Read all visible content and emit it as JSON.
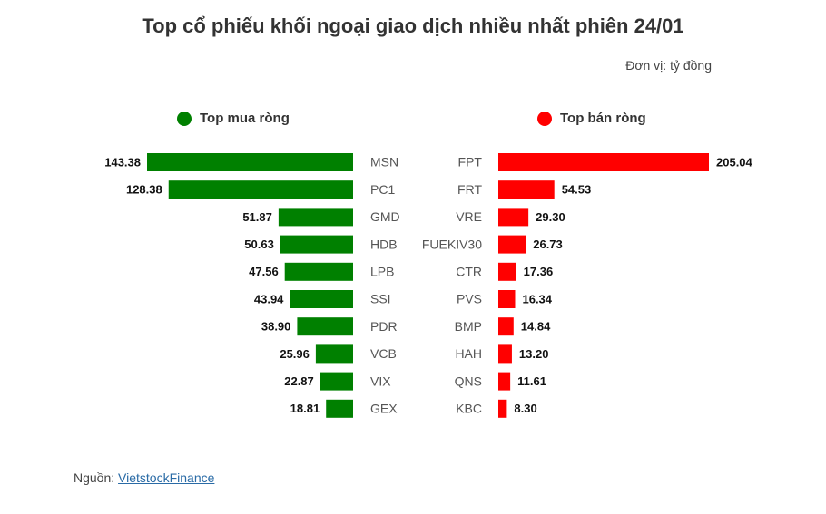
{
  "title": "Top cổ phiếu khối ngoại giao dịch nhiều nhất phiên 24/01",
  "unit": "Đơn vị: tỷ đồng",
  "source": {
    "label": "Nguồn:",
    "link_text": "VietstockFinance"
  },
  "colors": {
    "buy": "#008000",
    "sell": "#ff0000"
  },
  "chart_data": [
    {
      "type": "bar",
      "title": "Top mua ròng",
      "orientation": "horizontal",
      "direction": "leftward",
      "categories": [
        "MSN",
        "PC1",
        "GMD",
        "HDB",
        "LPB",
        "SSI",
        "PDR",
        "VCB",
        "VIX",
        "GEX"
      ],
      "values": [
        143.38,
        128.38,
        51.87,
        50.63,
        47.56,
        43.94,
        38.9,
        25.96,
        22.87,
        18.81
      ],
      "value_labels": [
        "143.38",
        "128.38",
        "51.87",
        "50.63",
        "47.56",
        "43.94",
        "38.90",
        "25.96",
        "22.87",
        "18.81"
      ],
      "color": "#008000"
    },
    {
      "type": "bar",
      "title": "Top bán ròng",
      "orientation": "horizontal",
      "direction": "rightward",
      "categories": [
        "FPT",
        "FRT",
        "VRE",
        "FUEKIV30",
        "CTR",
        "PVS",
        "BMP",
        "HAH",
        "QNS",
        "KBC"
      ],
      "values": [
        205.04,
        54.53,
        29.3,
        26.73,
        17.36,
        16.34,
        14.84,
        13.2,
        11.61,
        8.3
      ],
      "value_labels": [
        "205.04",
        "54.53",
        "29.30",
        "26.73",
        "17.36",
        "16.34",
        "14.84",
        "13.20",
        "11.61",
        "8.30"
      ],
      "color": "#ff0000"
    }
  ]
}
